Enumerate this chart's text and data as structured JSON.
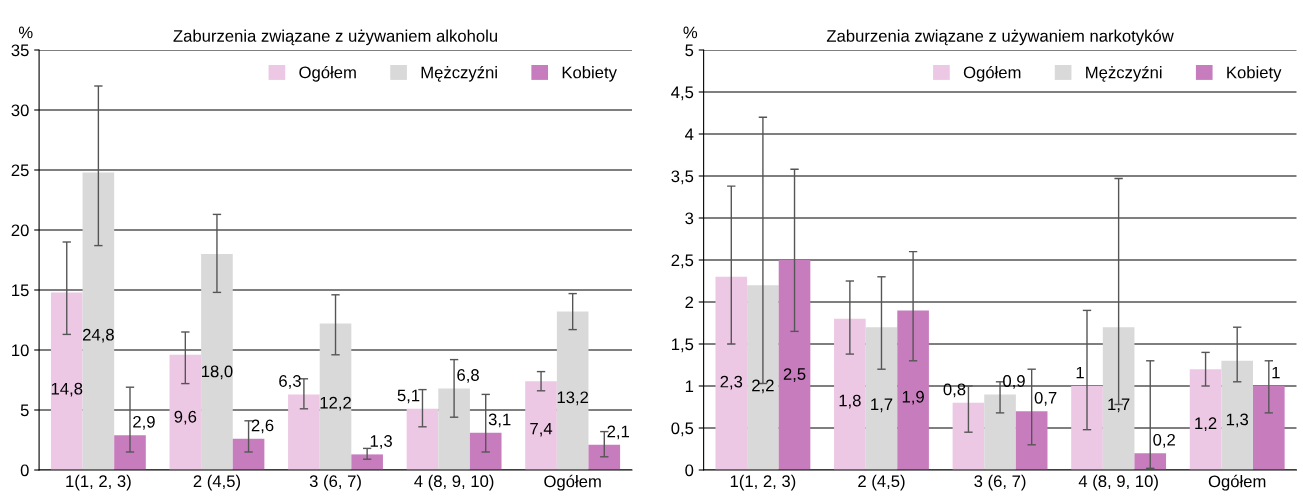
{
  "chart_data": [
    {
      "type": "bar",
      "title": "Zaburzenia związane z używaniem alkoholu",
      "ylabel": "%",
      "categories": [
        "1(1, 2, 3)",
        "2 (4,5)",
        "3 (6, 7)",
        "4 (8, 9, 10)",
        "Ogółem"
      ],
      "series": [
        {
          "name": "Ogółem",
          "color": "#ecc8e4",
          "values": [
            14.8,
            9.6,
            6.3,
            5.1,
            7.4
          ],
          "value_labels": [
            "14,8",
            "9,6",
            "6,3",
            "5,1",
            "7,4"
          ],
          "errors": [
            [
              11.3,
              19.0
            ],
            [
              7.2,
              11.5
            ],
            [
              5.1,
              7.6
            ],
            [
              3.6,
              6.7
            ],
            [
              6.6,
              8.2
            ]
          ]
        },
        {
          "name": "Mężczyźni",
          "color": "#d9d9d9",
          "values": [
            24.8,
            18.0,
            12.2,
            6.8,
            13.2
          ],
          "value_labels": [
            "24,8",
            "18,0",
            "12,2",
            "6,8",
            "13,2"
          ],
          "errors": [
            [
              18.7,
              32.0
            ],
            [
              14.8,
              21.3
            ],
            [
              9.6,
              14.6
            ],
            [
              4.4,
              9.2
            ],
            [
              11.7,
              14.7
            ]
          ]
        },
        {
          "name": "Kobiety",
          "color": "#c77dbd",
          "values": [
            2.9,
            2.6,
            1.3,
            3.1,
            2.1
          ],
          "value_labels": [
            "2,9",
            "2,6",
            "1,3",
            "3,1",
            "2,1"
          ],
          "errors": [
            [
              1.5,
              6.9
            ],
            [
              1.5,
              4.1
            ],
            [
              0.9,
              1.8
            ],
            [
              1.5,
              6.3
            ],
            [
              1.1,
              3.2
            ]
          ]
        }
      ],
      "ylim": [
        0,
        35
      ],
      "yticks": [
        0,
        5,
        10,
        15,
        20,
        25,
        30,
        35
      ],
      "grid": "y",
      "legend": "top right"
    },
    {
      "type": "bar",
      "title": "Zaburzenia związane z używaniem narkotyków",
      "ylabel": "%",
      "categories": [
        "1(1, 2, 3)",
        "2 (4,5)",
        "3 (6, 7)",
        "4 (8, 9, 10)",
        "Ogółem"
      ],
      "series": [
        {
          "name": "Ogółem",
          "color": "#ecc8e4",
          "values": [
            2.3,
            1.8,
            0.8,
            1,
            1.2
          ],
          "value_labels": [
            "2,3",
            "1,8",
            "0,8",
            "1",
            "1,2"
          ],
          "errors": [
            [
              1.5,
              3.38
            ],
            [
              1.38,
              2.25
            ],
            [
              0.45,
              1.0
            ],
            [
              0.48,
              1.9
            ],
            [
              1.0,
              1.4
            ]
          ]
        },
        {
          "name": "Mężczyźni",
          "color": "#d9d9d9",
          "values": [
            2.2,
            1.7,
            0.9,
            1.7,
            1.3
          ],
          "value_labels": [
            "2,2",
            "1,7",
            "0,9",
            "1,7",
            "1,3"
          ],
          "errors": [
            [
              1.03,
              4.2
            ],
            [
              1.2,
              2.3
            ],
            [
              0.68,
              1.05
            ],
            [
              0.78,
              3.47
            ],
            [
              1.05,
              1.7
            ]
          ]
        },
        {
          "name": "Kobiety",
          "color": "#c77dbd",
          "values": [
            2.5,
            1.9,
            0.7,
            0.2,
            1
          ],
          "value_labels": [
            "2,5",
            "1,9",
            "0,7",
            "0,2",
            "1"
          ],
          "errors": [
            [
              1.65,
              3.58
            ],
            [
              1.3,
              2.6
            ],
            [
              0.3,
              1.2
            ],
            [
              0.02,
              1.3
            ],
            [
              0.68,
              1.3
            ]
          ]
        }
      ],
      "ylim": [
        0,
        5
      ],
      "yticks": [
        0,
        {
          "value": 0.5,
          "label": "0,5"
        },
        1,
        {
          "value": 1.5,
          "label": "1,5"
        },
        2,
        {
          "value": 2.5,
          "label": "2,5"
        },
        3,
        {
          "value": 3.5,
          "label": "3,5"
        },
        4,
        {
          "value": 4.5,
          "label": "4,5"
        },
        5
      ],
      "grid": "y",
      "legend": "top right"
    }
  ]
}
